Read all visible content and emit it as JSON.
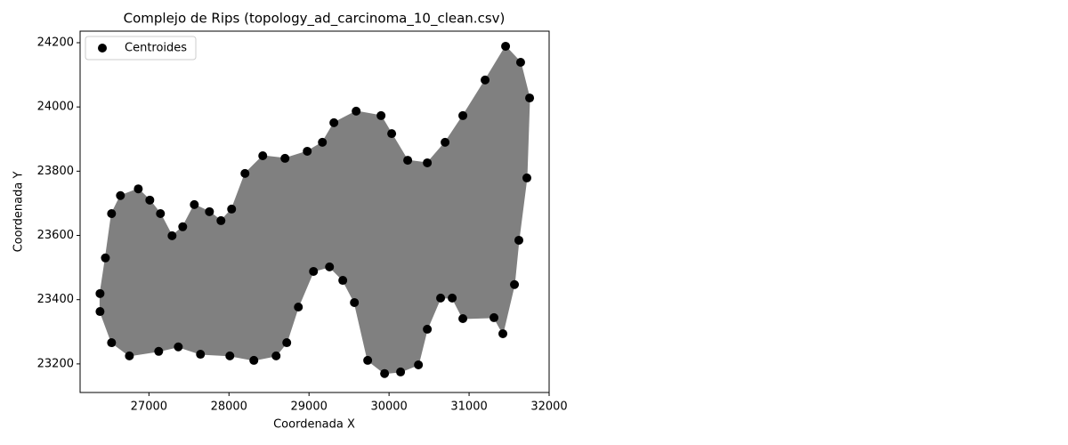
{
  "chart_data": {
    "type": "scatter",
    "title": "Complejo de Rips (topology_ad_carcinoma_10_clean.csv)",
    "xlabel": "Coordenada X",
    "ylabel": "Coordenada Y",
    "x": [
      26389,
      26456,
      26533,
      26644,
      26867,
      27011,
      27144,
      27289,
      27422,
      27567,
      27756,
      27900,
      28033,
      28200,
      28422,
      28700,
      28978,
      29167,
      29311,
      29589,
      29900,
      30033,
      30233,
      30478,
      30700,
      30922,
      31200,
      31456,
      31644,
      31756,
      31722,
      31622,
      31567,
      31422,
      31311,
      30922,
      30789,
      30644,
      30478,
      30367,
      30144,
      29944,
      29733,
      29567,
      29422,
      29256,
      29056,
      28867,
      28722,
      28589,
      28311,
      28011,
      27644,
      27367,
      27122,
      26756,
      26533,
      26389
    ],
    "series": [
      {
        "name": "Centroides",
        "color": "#000000",
        "values": [
          23419,
          23530,
          23668,
          23724,
          23745,
          23710,
          23668,
          23599,
          23627,
          23696,
          23674,
          23646,
          23682,
          23793,
          23848,
          23840,
          23862,
          23890,
          23951,
          23987,
          23973,
          23917,
          23834,
          23826,
          23890,
          23973,
          24084,
          24189,
          24139,
          24028,
          23779,
          23585,
          23447,
          23294,
          23344,
          23341,
          23405,
          23405,
          23308,
          23197,
          23175,
          23170,
          23211,
          23391,
          23460,
          23502,
          23488,
          23377,
          23266,
          23225,
          23211,
          23225,
          23230,
          23253,
          23239,
          23225,
          23266,
          23363
        ]
      }
    ],
    "fill_color": "#808080",
    "xlim": [
      26140,
      32000
    ],
    "xticks": [
      27000,
      28000,
      29000,
      30000,
      31000,
      32000
    ],
    "ylim": [
      23111,
      24236
    ],
    "yticks": [
      23200,
      23400,
      23600,
      23800,
      24000,
      24200
    ],
    "legend": "upper left",
    "grid": false
  }
}
